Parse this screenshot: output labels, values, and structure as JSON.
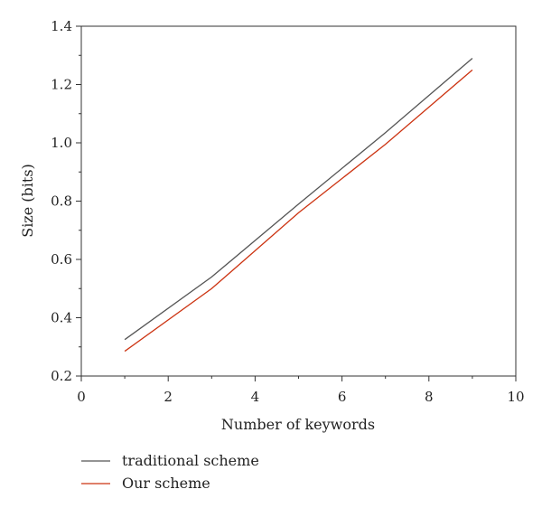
{
  "chart_data": {
    "type": "line",
    "xlabel": "Number of keywords",
    "ylabel": "Size (bits)",
    "xlim": [
      0,
      10
    ],
    "ylim": [
      0.2,
      1.4
    ],
    "xticks": [
      0,
      2,
      4,
      6,
      8,
      10
    ],
    "yticks": [
      0.2,
      0.4,
      0.6,
      0.8,
      1.0,
      1.2,
      1.4
    ],
    "xtick_labels": [
      "0",
      "2",
      "4",
      "6",
      "8",
      "10"
    ],
    "ytick_labels": [
      "0.2",
      "0.4",
      "0.6",
      "0.8",
      "1.0",
      "1.2",
      "1.4"
    ],
    "grid": false,
    "legend_position": "bottom-left-outside",
    "series": [
      {
        "name": "traditional scheme",
        "color": "#555555",
        "x": [
          1,
          3,
          5,
          7,
          9
        ],
        "y": [
          0.325,
          0.54,
          0.79,
          1.035,
          1.29
        ]
      },
      {
        "name": "Our scheme",
        "color": "#cc3311",
        "x": [
          1,
          3,
          5,
          7,
          9
        ],
        "y": [
          0.285,
          0.5,
          0.76,
          0.995,
          1.25
        ]
      }
    ]
  }
}
